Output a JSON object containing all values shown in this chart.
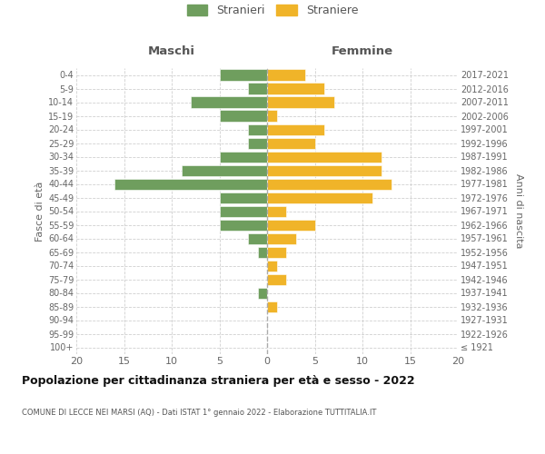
{
  "age_groups": [
    "100+",
    "95-99",
    "90-94",
    "85-89",
    "80-84",
    "75-79",
    "70-74",
    "65-69",
    "60-64",
    "55-59",
    "50-54",
    "45-49",
    "40-44",
    "35-39",
    "30-34",
    "25-29",
    "20-24",
    "15-19",
    "10-14",
    "5-9",
    "0-4"
  ],
  "birth_years": [
    "≤ 1921",
    "1922-1926",
    "1927-1931",
    "1932-1936",
    "1937-1941",
    "1942-1946",
    "1947-1951",
    "1952-1956",
    "1957-1961",
    "1962-1966",
    "1967-1971",
    "1972-1976",
    "1977-1981",
    "1982-1986",
    "1987-1991",
    "1992-1996",
    "1997-2001",
    "2002-2006",
    "2007-2011",
    "2012-2016",
    "2017-2021"
  ],
  "males": [
    0,
    0,
    0,
    0,
    1,
    0,
    0,
    1,
    2,
    5,
    5,
    5,
    16,
    9,
    5,
    2,
    2,
    5,
    8,
    2,
    5
  ],
  "females": [
    0,
    0,
    0,
    1,
    0,
    2,
    1,
    2,
    3,
    5,
    2,
    11,
    13,
    12,
    12,
    5,
    6,
    1,
    7,
    6,
    4
  ],
  "male_color": "#6f9e5e",
  "female_color": "#f0b429",
  "male_label": "Stranieri",
  "female_label": "Straniere",
  "title": "Popolazione per cittadinanza straniera per età e sesso - 2022",
  "subtitle": "COMUNE DI LECCE NEI MARSI (AQ) - Dati ISTAT 1° gennaio 2022 - Elaborazione TUTTITALIA.IT",
  "xlabel_left": "Maschi",
  "xlabel_right": "Femmine",
  "ylabel_left": "Fasce di età",
  "ylabel_right": "Anni di nascita",
  "xlim": 20,
  "background_color": "#ffffff",
  "grid_color": "#d0d0d0",
  "center_line_color": "#aaaaaa"
}
